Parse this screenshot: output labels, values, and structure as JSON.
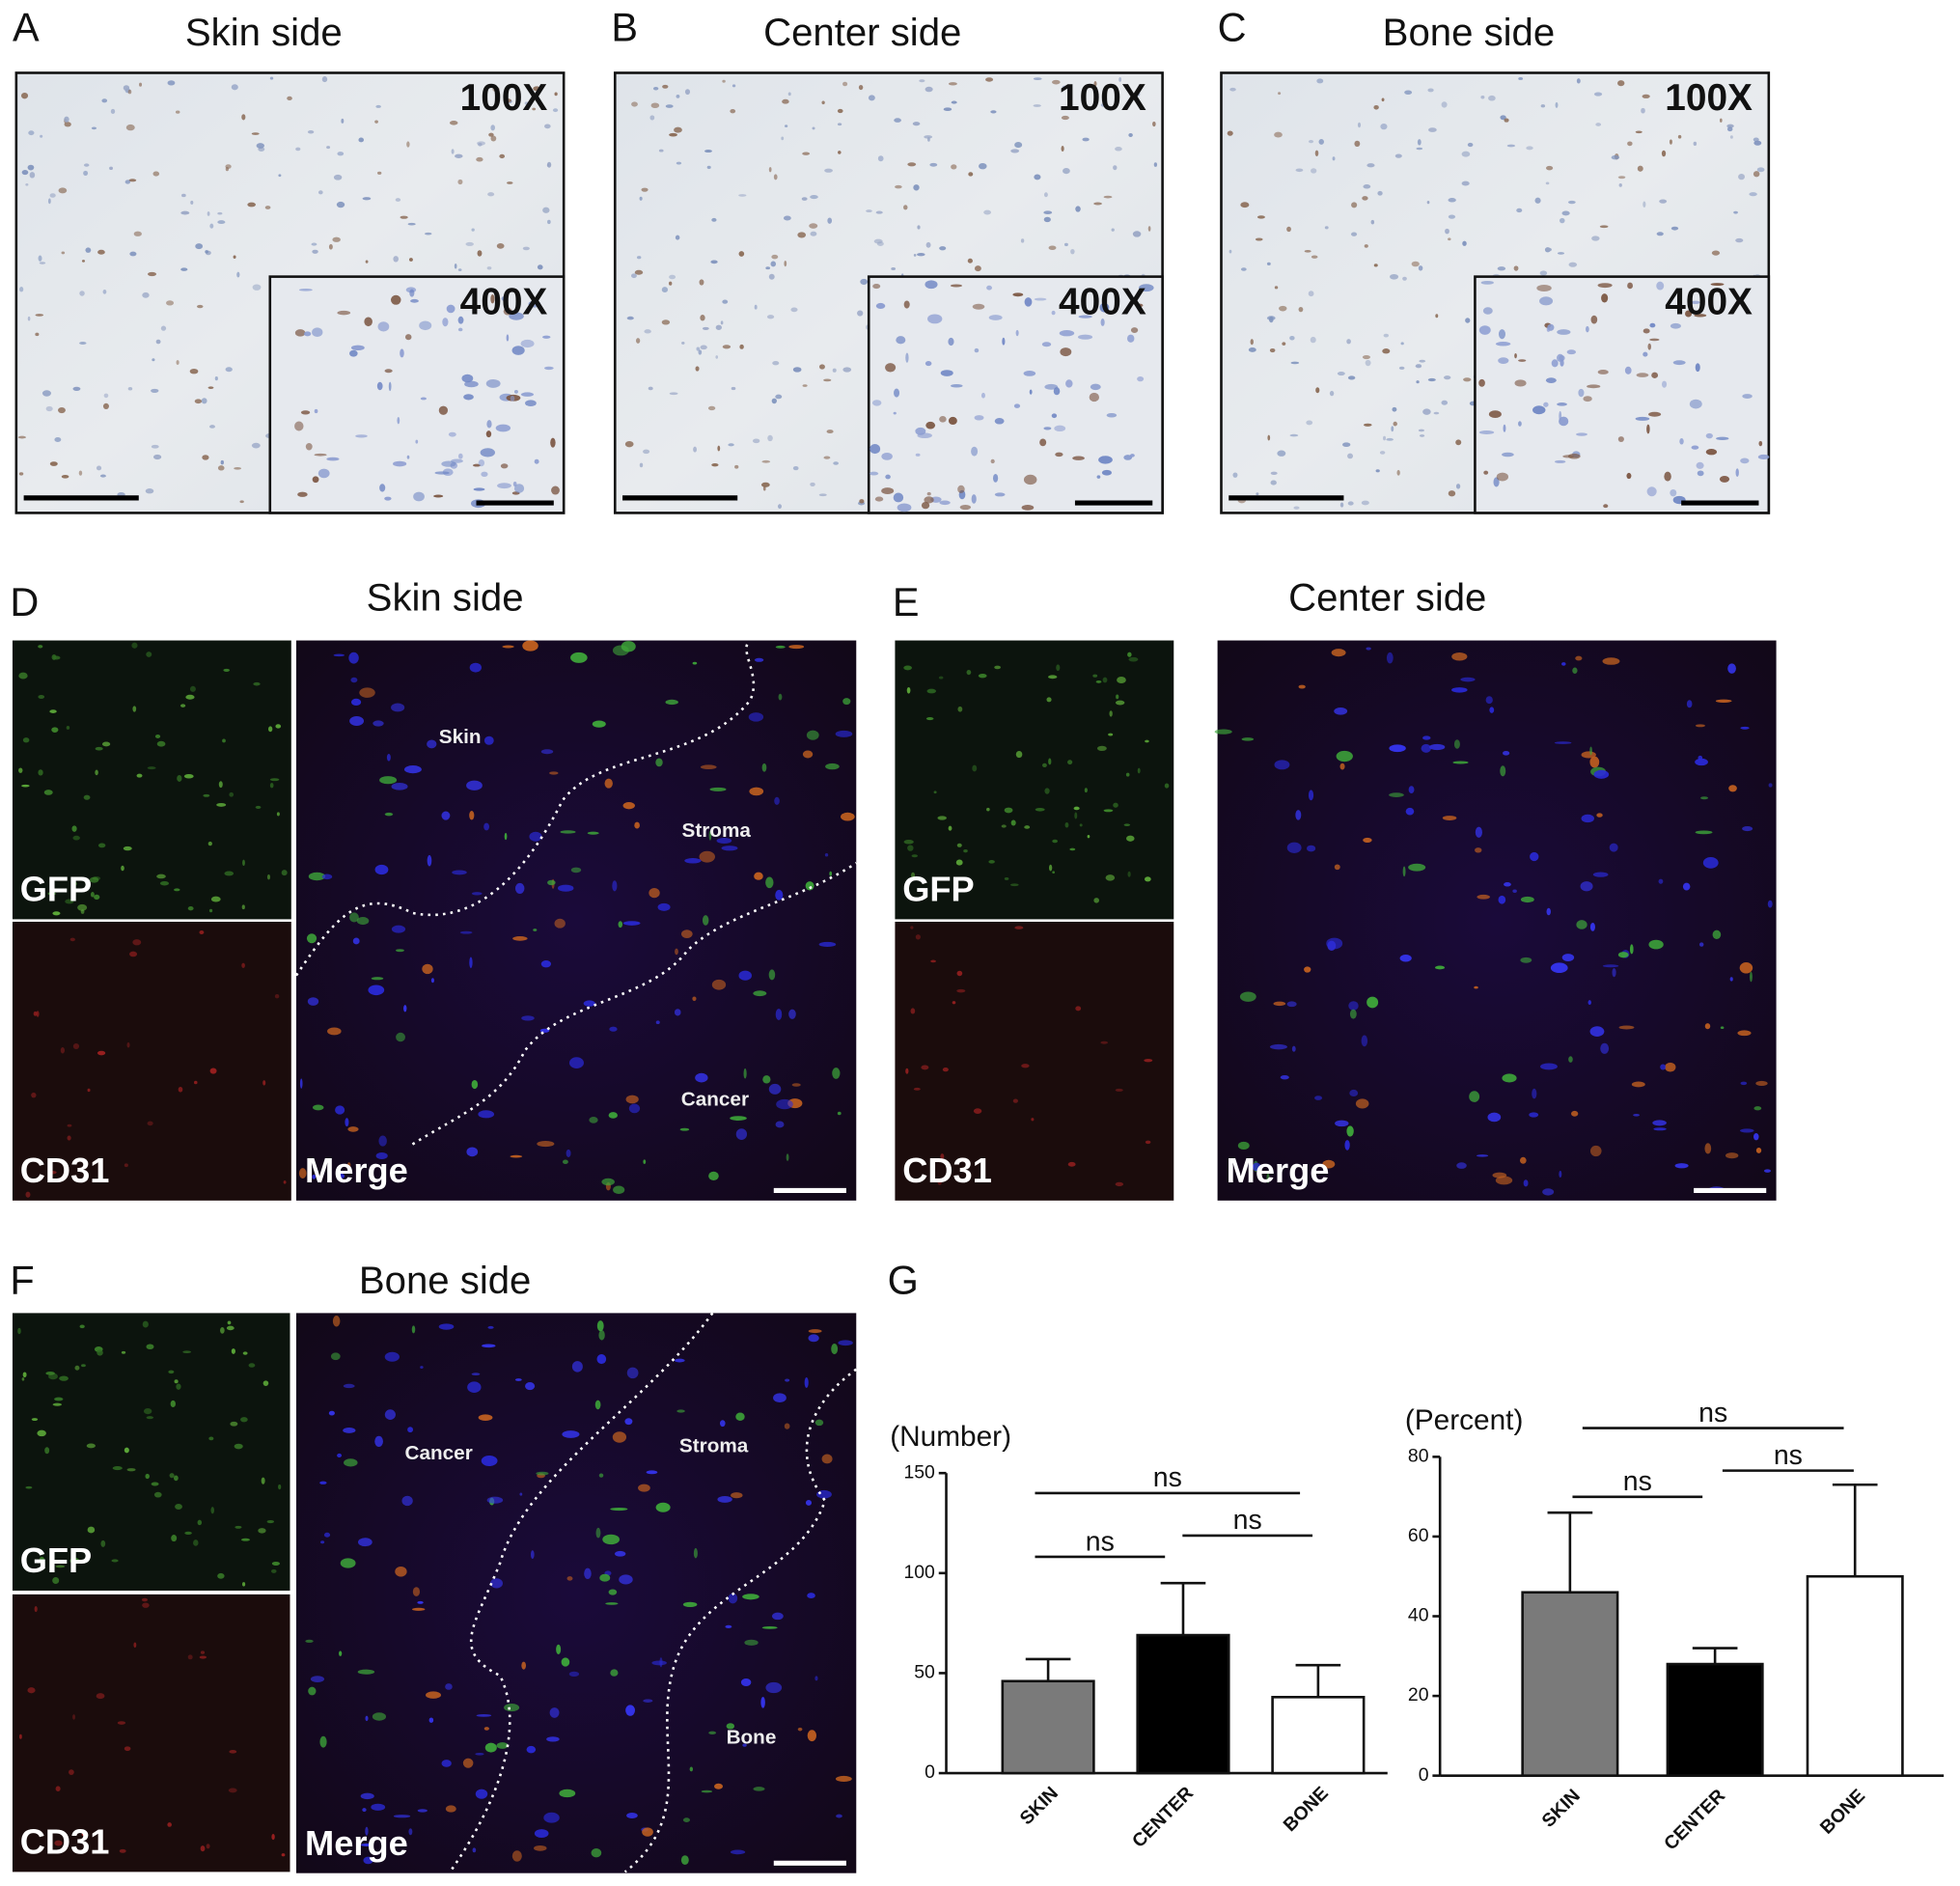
{
  "panels": [
    {
      "letter": "A",
      "title": "Skin side",
      "magnifications": [
        "100X",
        "400X"
      ]
    },
    {
      "letter": "B",
      "title": "Center side",
      "magnifications": [
        "100X",
        "400X"
      ]
    },
    {
      "letter": "C",
      "title": "Bone side",
      "magnifications": [
        "100X",
        "400X"
      ]
    }
  ],
  "fluorescence": [
    {
      "letter": "D",
      "title": "Skin side",
      "channels": [
        "GFP",
        "CD31",
        "Merge"
      ],
      "regions": [
        "Skin",
        "Stroma",
        "Cancer"
      ]
    },
    {
      "letter": "E",
      "title": "Center side",
      "channels": [
        "GFP",
        "CD31",
        "Merge"
      ],
      "regions": []
    },
    {
      "letter": "F",
      "title": "Bone side",
      "channels": [
        "GFP",
        "CD31",
        "Merge"
      ],
      "regions": [
        "Cancer",
        "Stroma",
        "Bone"
      ]
    }
  ],
  "panel_g": {
    "letter": "G"
  },
  "chart_data": [
    {
      "type": "bar",
      "ylabel": "(Number)",
      "categories": [
        "SKIN",
        "CENTER",
        "BONE"
      ],
      "values": [
        46,
        69,
        38
      ],
      "errors": [
        11,
        26,
        16
      ],
      "colors": [
        "#7a7a7a",
        "#000000",
        "#ffffff"
      ],
      "ylim": [
        0,
        150
      ],
      "yticks": [
        0,
        50,
        100,
        150
      ],
      "annotations": [
        "ns",
        "ns",
        "ns"
      ]
    },
    {
      "type": "bar",
      "ylabel": "(Percent)",
      "categories": [
        "SKIN",
        "CENTER",
        "BONE"
      ],
      "values": [
        46,
        28,
        50
      ],
      "errors": [
        20,
        4,
        23
      ],
      "colors": [
        "#7a7a7a",
        "#000000",
        "#ffffff"
      ],
      "ylim": [
        0,
        80
      ],
      "yticks": [
        0,
        20,
        40,
        60,
        80
      ],
      "annotations": [
        "ns",
        "ns",
        "ns"
      ]
    }
  ]
}
